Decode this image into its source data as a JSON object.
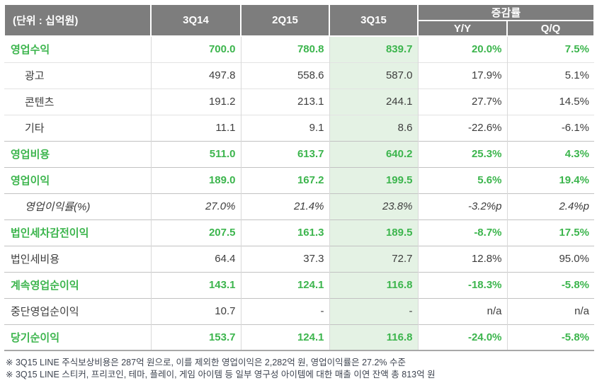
{
  "table": {
    "unit_label": "(단위 : 십억원)",
    "columns": [
      "3Q14",
      "2Q15",
      "3Q15"
    ],
    "change_group_label": "증감률",
    "change_columns": [
      "Y/Y",
      "Q/Q"
    ],
    "rows": [
      {
        "label": "영업수익",
        "style": "highlight",
        "values": [
          "700.0",
          "780.8",
          "839.7",
          "20.0%",
          "7.5%"
        ]
      },
      {
        "label": "광고",
        "style": "sub",
        "values": [
          "497.8",
          "558.6",
          "587.0",
          "17.9%",
          "5.1%"
        ]
      },
      {
        "label": "콘텐츠",
        "style": "sub",
        "values": [
          "191.2",
          "213.1",
          "244.1",
          "27.7%",
          "14.5%"
        ]
      },
      {
        "label": "기타",
        "style": "sub",
        "values": [
          "11.1",
          "9.1",
          "8.6",
          "-22.6%",
          "-6.1%"
        ]
      },
      {
        "label": "영업비용",
        "style": "highlight",
        "values": [
          "511.0",
          "613.7",
          "640.2",
          "25.3%",
          "4.3%"
        ]
      },
      {
        "label": "영업이익",
        "style": "highlight",
        "values": [
          "189.0",
          "167.2",
          "199.5",
          "5.6%",
          "19.4%"
        ]
      },
      {
        "label": "영업이익률(%)",
        "style": "italic",
        "values": [
          "27.0%",
          "21.4%",
          "23.8%",
          "-3.2%p",
          "2.4%p"
        ]
      },
      {
        "label": "법인세차감전이익",
        "style": "highlight",
        "values": [
          "207.5",
          "161.3",
          "189.5",
          "-8.7%",
          "17.5%"
        ]
      },
      {
        "label": "법인세비용",
        "style": "normal",
        "values": [
          "64.4",
          "37.3",
          "72.7",
          "12.8%",
          "95.0%"
        ]
      },
      {
        "label": "계속영업순이익",
        "style": "highlight",
        "values": [
          "143.1",
          "124.1",
          "116.8",
          "-18.3%",
          "-5.8%"
        ]
      },
      {
        "label": "중단영업순이익",
        "style": "normal",
        "values": [
          "10.7",
          "-",
          "-",
          "n/a",
          "n/a"
        ]
      },
      {
        "label": "당기순이익",
        "style": "highlight",
        "values": [
          "153.7",
          "124.1",
          "116.8",
          "-24.0%",
          "-5.8%"
        ]
      }
    ]
  },
  "footnotes": [
    "※ 3Q15 LINE 주식보상비용은 287억 원으로, 이를 제외한 영업이익은 2,282억 원, 영업이익률은 27.2% 수준",
    "※ 3Q15 LINE 스티커, 프리코인, 테마, 플레이, 게임 아이템 등 일부 영구성 아이템에 대한 매출 이연 잔액 총 813억 원"
  ],
  "colors": {
    "header_bg": "#7d7d7d",
    "header_text": "#ffffff",
    "accent_green": "#3cb54d",
    "highlight_col_bg": "#e4f2e4",
    "body_text": "#3d3d3d",
    "footnote_text": "#3e4450",
    "grid": "#c2c2c2",
    "grid_light": "#e3e3e3",
    "grid_vertical": "#d9d9d9",
    "grid_strong": "#a8a8a8"
  }
}
